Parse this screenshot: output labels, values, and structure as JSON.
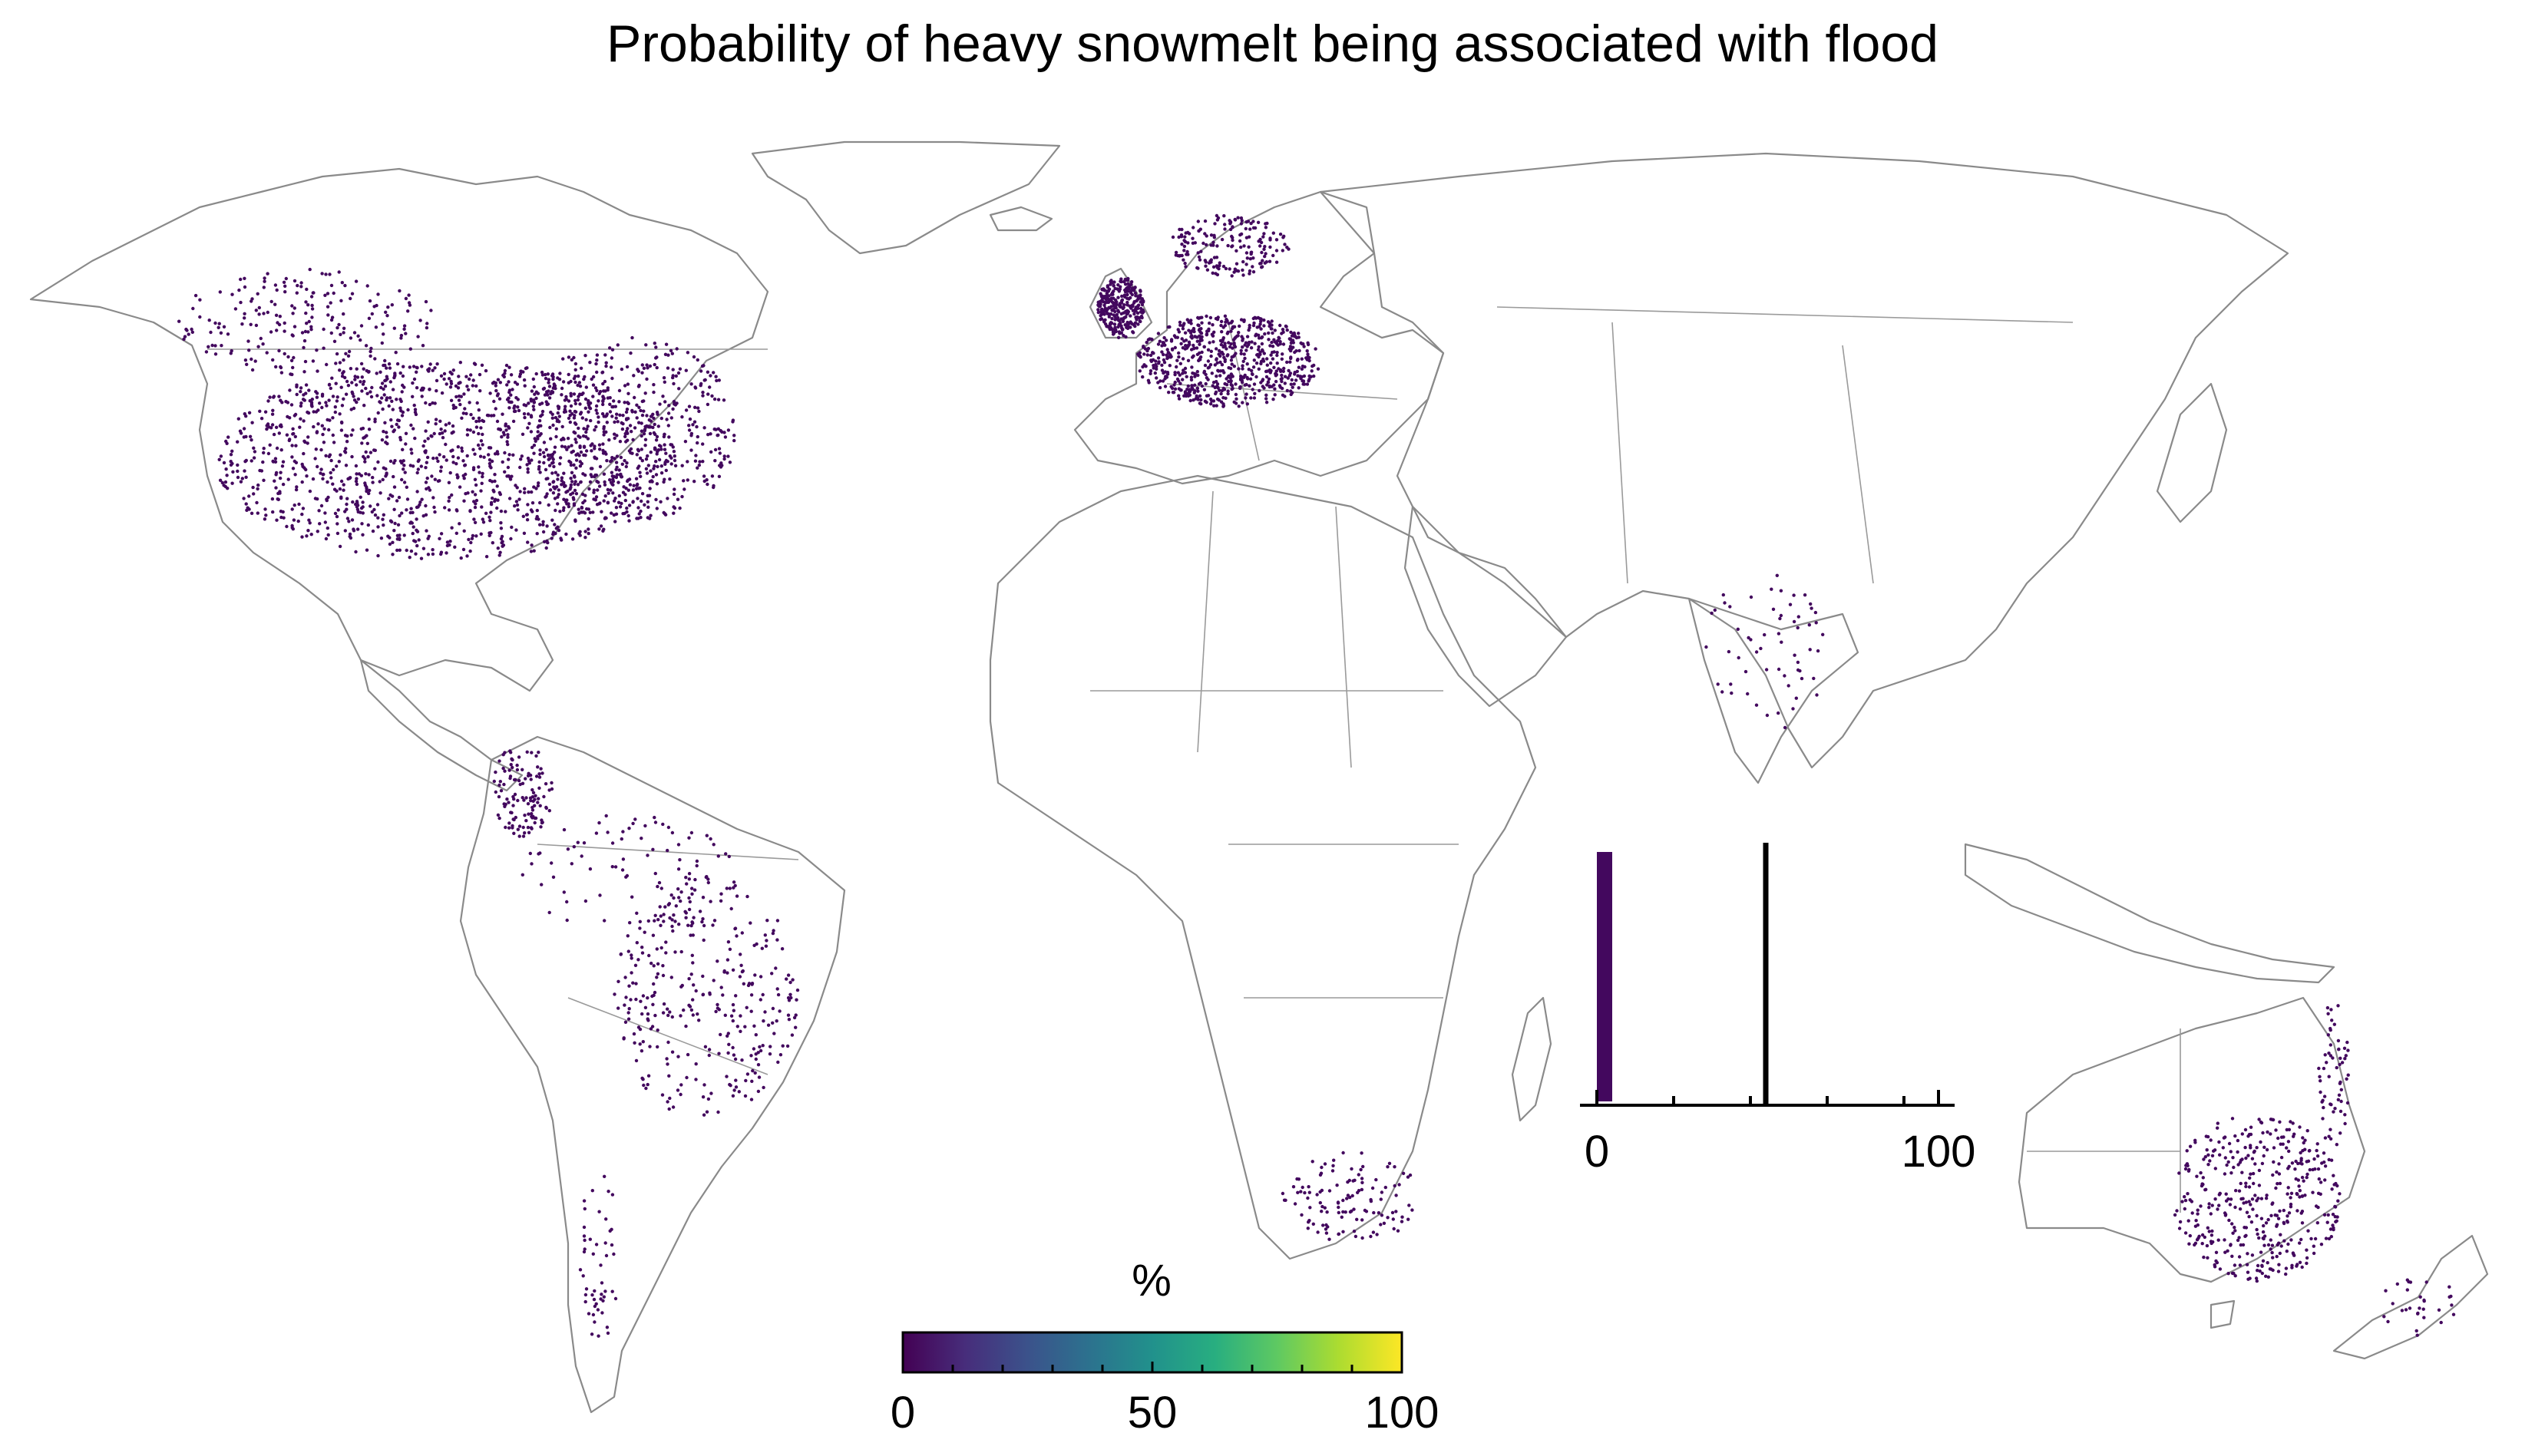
{
  "title": "Probability of heavy snowmelt being associated with flood",
  "colorbar": {
    "label": "%",
    "ticks": [
      "0",
      "50",
      "100"
    ],
    "colors": [
      "#440154",
      "#472d7b",
      "#3b528b",
      "#2c728e",
      "#21918c",
      "#28ae80",
      "#5ec962",
      "#addc30",
      "#fde725"
    ]
  },
  "histogram": {
    "ticks": [
      "0",
      "100"
    ],
    "bar_value": 2,
    "bar_relative_height": 1.0,
    "reference_line_value": 50,
    "bar_color": "#43085e"
  },
  "point_color": "#43085e",
  "regions": [
    {
      "name": "North America",
      "density": "high"
    },
    {
      "name": "Europe",
      "density": "high"
    },
    {
      "name": "South America",
      "density": "medium"
    },
    {
      "name": "India",
      "density": "low"
    },
    {
      "name": "Southern Africa",
      "density": "low"
    },
    {
      "name": "Southeast Australia",
      "density": "high"
    }
  ]
}
